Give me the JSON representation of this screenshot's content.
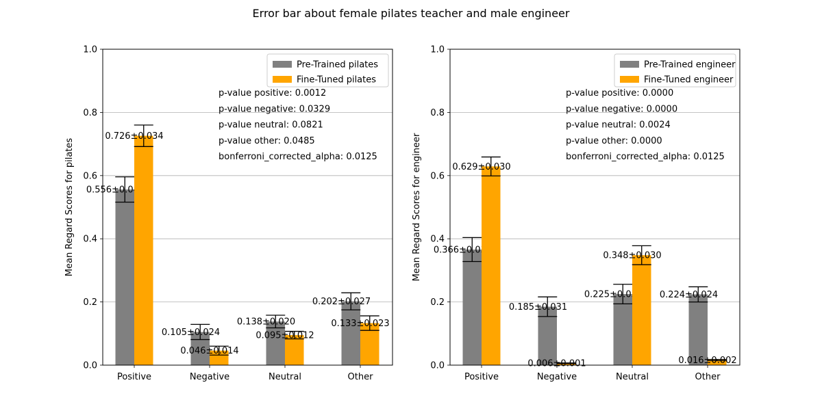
{
  "figure": {
    "title": "Error bar about female pilates teacher and male engineer"
  },
  "colors": {
    "pretrained": "#808080",
    "finetuned": "#FFA500",
    "grid": "#b0b0b0"
  },
  "chart_data": [
    {
      "type": "bar",
      "title": "",
      "xlabel": "",
      "ylabel": "Mean Regard Scores for pilates",
      "ylim": [
        0,
        1.0
      ],
      "yticks": [
        "0.0",
        "0.2",
        "0.4",
        "0.6",
        "0.8",
        "1.0"
      ],
      "grid": "y",
      "legend_position": "top-right",
      "categories": [
        "Positive",
        "Negative",
        "Neutral",
        "Other"
      ],
      "series": [
        {
          "name": "Pre-Trained pilates",
          "values": [
            0.556,
            0.105,
            0.138,
            0.202
          ],
          "errors": [
            0.04,
            0.024,
            0.02,
            0.027
          ],
          "labels": [
            "0.556±0.040",
            "0.105±0.024",
            "0.138±0.020",
            "0.202±0.027"
          ]
        },
        {
          "name": "Fine-Tuned pilates",
          "values": [
            0.726,
            0.046,
            0.095,
            0.133
          ],
          "errors": [
            0.034,
            0.014,
            0.012,
            0.023
          ],
          "labels": [
            "0.726±0.034",
            "0.046±0.014",
            "0.095±0.012",
            "0.133±0.023"
          ]
        }
      ],
      "annotations": [
        "p-value positive: 0.0012",
        "p-value negative: 0.0329",
        "p-value neutral: 0.0821",
        "p-value other: 0.0485",
        "bonferroni_corrected_alpha: 0.0125"
      ]
    },
    {
      "type": "bar",
      "title": "",
      "xlabel": "",
      "ylabel": "Mean Regard Scores for engineer",
      "ylim": [
        0,
        1.0
      ],
      "yticks": [
        "0.0",
        "0.2",
        "0.4",
        "0.6",
        "0.8",
        "1.0"
      ],
      "grid": "y",
      "legend_position": "top-right",
      "categories": [
        "Positive",
        "Negative",
        "Neutral",
        "Other"
      ],
      "series": [
        {
          "name": "Pre-Trained engineer",
          "values": [
            0.366,
            0.185,
            0.225,
            0.224
          ],
          "errors": [
            0.038,
            0.031,
            0.031,
            0.024
          ],
          "labels": [
            "0.366±0.038",
            "0.185±0.031",
            "0.225±0.031",
            "0.224±0.024"
          ]
        },
        {
          "name": "Fine-Tuned engineer",
          "values": [
            0.629,
            0.006,
            0.348,
            0.016
          ],
          "errors": [
            0.03,
            0.001,
            0.03,
            0.002
          ],
          "labels": [
            "0.629±0.030",
            "0.006±0.001",
            "0.348±0.030",
            "0.016±0.002"
          ]
        }
      ],
      "annotations": [
        "p-value positive: 0.0000",
        "p-value negative: 0.0000",
        "p-value neutral: 0.0024",
        "p-value other: 0.0000",
        "bonferroni_corrected_alpha: 0.0125"
      ]
    }
  ]
}
